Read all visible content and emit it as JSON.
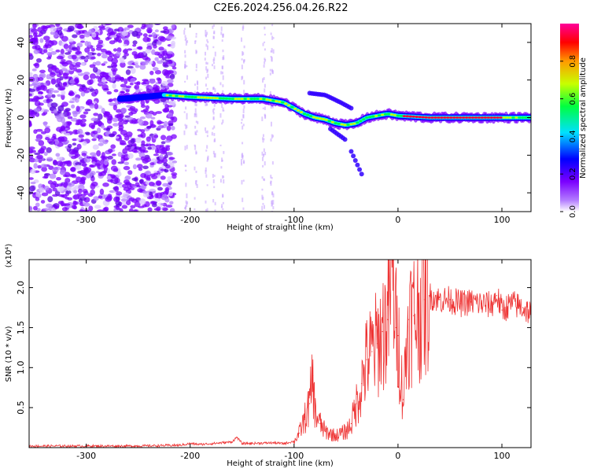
{
  "title": "C2E6.2024.256.04.26.R22",
  "chart_data": [
    {
      "type": "heatmap",
      "title": "C2E6.2024.256.04.26.R22",
      "xlabel": "Height of straight line (km)",
      "ylabel": "Frequency (Hz)",
      "xlim": [
        -355,
        128
      ],
      "ylim": [
        -50,
        50
      ],
      "xticks": [
        -300,
        -200,
        -100,
        0,
        100
      ],
      "yticks": [
        -40,
        -20,
        0,
        20,
        40
      ],
      "colorbar": {
        "label": "Normalized spectral amplitude",
        "range": [
          0,
          1
        ],
        "ticks": [
          "0.0",
          "0.2",
          "0.4",
          "0.6",
          "0.8"
        ],
        "colors": [
          "#ffffff",
          "#7b00ff",
          "#0000ff",
          "#00e0ff",
          "#00ff40",
          "#c8ff00",
          "#ff9a00",
          "#ff0000",
          "#ff0099"
        ]
      },
      "ridge": {
        "x": [
          -265,
          -225,
          -200,
          -160,
          -130,
          -110,
          -100,
          -90,
          -80,
          -70,
          -60,
          -50,
          -40,
          -30,
          -20,
          -10,
          0,
          30,
          60,
          90,
          128
        ],
        "y": [
          10,
          12,
          11,
          10,
          10,
          8,
          5,
          2,
          0,
          -1,
          -3,
          -4,
          -3,
          0,
          1,
          2,
          1,
          0,
          0,
          0,
          0
        ]
      },
      "side_branches": [
        {
          "x": [
            -85,
            -70,
            -55,
            -45
          ],
          "y": [
            13,
            12,
            8,
            5
          ]
        },
        {
          "x": [
            -65,
            -55,
            -50
          ],
          "y": [
            -6,
            -10,
            -12
          ]
        },
        {
          "x": [
            -45,
            -40,
            -35
          ],
          "y": [
            -18,
            -24,
            -30
          ]
        }
      ]
    },
    {
      "type": "line",
      "xlabel": "Height of straight line (km)",
      "ylabel": "SNR (10 * v/v)",
      "y_multiplier": "(x10⁴)",
      "xlim": [
        -355,
        128
      ],
      "ylim": [
        0,
        2.35
      ],
      "xticks": [
        -300,
        -200,
        -100,
        0,
        100
      ],
      "yticks": [
        0.5,
        1.0,
        1.5,
        2.0
      ],
      "color": "#ee3333",
      "series": [
        {
          "x": [
            -355,
            -300,
            -250,
            -210,
            -200,
            -190,
            -160,
            -155,
            -150,
            -120,
            -110,
            -100,
            -95,
            -90,
            -85,
            -82,
            -80,
            -75,
            -70,
            -60,
            -50,
            -45,
            -40,
            -35,
            -30,
            -25,
            -20,
            -15,
            -10,
            -5,
            -2,
            0,
            5,
            10,
            15,
            20,
            25,
            30,
            40,
            50,
            60,
            70,
            80,
            90,
            95,
            100,
            110,
            120,
            128
          ],
          "y": [
            0.02,
            0.02,
            0.02,
            0.03,
            0.05,
            0.04,
            0.07,
            0.13,
            0.05,
            0.06,
            0.05,
            0.08,
            0.18,
            0.35,
            0.55,
            0.9,
            0.45,
            0.3,
            0.2,
            0.15,
            0.2,
            0.3,
            0.55,
            0.8,
            1.1,
            1.2,
            1.3,
            1.45,
            1.6,
            2.35,
            1.5,
            1.4,
            0.6,
            1.6,
            1.65,
            1.75,
            1.85,
            1.9,
            1.85,
            1.85,
            1.8,
            1.82,
            1.8,
            1.78,
            1.9,
            1.72,
            1.8,
            1.75,
            1.68
          ]
        }
      ]
    }
  ]
}
